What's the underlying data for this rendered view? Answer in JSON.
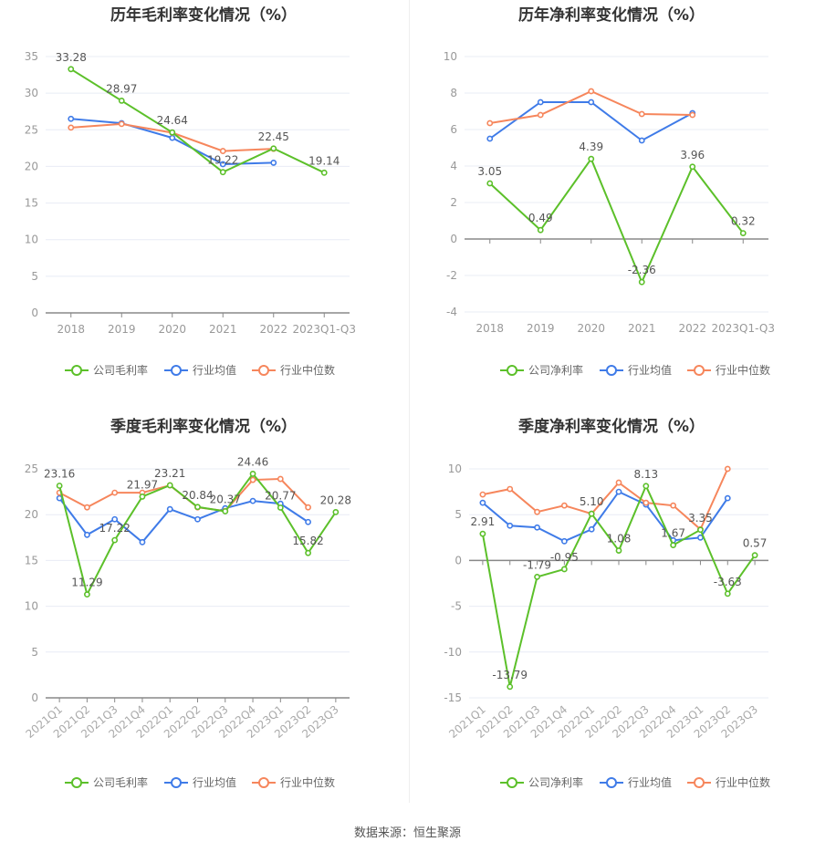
{
  "colors": {
    "company": "#5cc02a",
    "avg": "#3f7be8",
    "median": "#f6865c"
  },
  "footer": "数据来源：恒生聚源",
  "chart_data": [
    {
      "type": "line",
      "title": "历年毛利率变化情况（%）",
      "categories": [
        "2018",
        "2019",
        "2020",
        "2021",
        "2022",
        "2023Q1-Q3"
      ],
      "ylim": [
        0,
        35
      ],
      "yticks": [
        0,
        5,
        10,
        15,
        20,
        25,
        30,
        35
      ],
      "legend_position": "bottom",
      "series": [
        {
          "key": "company",
          "name": "公司毛利率",
          "values": [
            33.28,
            28.97,
            24.64,
            19.22,
            22.45,
            19.14
          ],
          "labels": [
            "33.28",
            "28.97",
            "24.64",
            "19.22",
            "22.45",
            "19.14"
          ]
        },
        {
          "key": "avg",
          "name": "行业均值",
          "values": [
            26.5,
            25.9,
            23.9,
            20.3,
            20.5,
            null
          ]
        },
        {
          "key": "median",
          "name": "行业中位数",
          "values": [
            25.3,
            25.8,
            24.6,
            22.1,
            22.4,
            null
          ]
        }
      ]
    },
    {
      "type": "line",
      "title": "历年净利率变化情况（%）",
      "categories": [
        "2018",
        "2019",
        "2020",
        "2021",
        "2022",
        "2023Q1-Q3"
      ],
      "ylim": [
        -4,
        10
      ],
      "yticks": [
        -4,
        -2,
        0,
        2,
        4,
        6,
        8,
        10
      ],
      "legend_position": "bottom",
      "series": [
        {
          "key": "company",
          "name": "公司净利率",
          "values": [
            3.05,
            0.49,
            4.39,
            -2.36,
            3.96,
            0.32
          ],
          "labels": [
            "3.05",
            "0.49",
            "4.39",
            "-2.36",
            "3.96",
            "0.32"
          ]
        },
        {
          "key": "avg",
          "name": "行业均值",
          "values": [
            5.5,
            7.5,
            7.5,
            5.4,
            6.9,
            null
          ]
        },
        {
          "key": "median",
          "name": "行业中位数",
          "values": [
            6.35,
            6.8,
            8.1,
            6.85,
            6.8,
            null
          ]
        }
      ]
    },
    {
      "type": "line",
      "title": "季度毛利率变化情况（%）",
      "categories": [
        "2021Q1",
        "2021Q2",
        "2021Q3",
        "2021Q4",
        "2022Q1",
        "2022Q2",
        "2022Q3",
        "2022Q4",
        "2023Q1",
        "2023Q2",
        "2023Q3"
      ],
      "ylim": [
        0,
        25
      ],
      "yticks": [
        0,
        5,
        10,
        15,
        20,
        25
      ],
      "legend_position": "bottom",
      "series": [
        {
          "key": "company",
          "name": "公司毛利率",
          "values": [
            23.16,
            11.29,
            17.22,
            21.97,
            23.21,
            20.84,
            20.37,
            24.46,
            20.77,
            15.82,
            20.28
          ],
          "labels": [
            "23.16",
            "11.29",
            "17.22",
            "21.97",
            "23.21",
            "20.84",
            "20.37",
            "24.46",
            "20.77",
            "15.82",
            "20.28"
          ]
        },
        {
          "key": "avg",
          "name": "行业均值",
          "values": [
            21.8,
            17.8,
            19.5,
            17.0,
            20.6,
            19.5,
            20.7,
            21.5,
            21.2,
            19.2,
            null
          ]
        },
        {
          "key": "median",
          "name": "行业中位数",
          "values": [
            22.4,
            20.8,
            22.4,
            22.4,
            23.2,
            20.8,
            20.4,
            23.8,
            23.9,
            20.8,
            null
          ]
        }
      ]
    },
    {
      "type": "line",
      "title": "季度净利率变化情况（%）",
      "categories": [
        "2021Q1",
        "2021Q2",
        "2021Q3",
        "2021Q4",
        "2022Q1",
        "2022Q2",
        "2022Q3",
        "2022Q4",
        "2023Q1",
        "2023Q2",
        "2023Q3"
      ],
      "ylim": [
        -15,
        10
      ],
      "yticks": [
        -15,
        -10,
        -5,
        0,
        5,
        10
      ],
      "legend_position": "bottom",
      "series": [
        {
          "key": "company",
          "name": "公司净利率",
          "values": [
            2.91,
            -13.79,
            -1.79,
            -0.95,
            5.1,
            1.08,
            8.13,
            1.67,
            3.35,
            -3.63,
            0.57
          ],
          "labels": [
            "2.91",
            "-13.79",
            "-1.79",
            "-0.95",
            "5.10",
            "1.08",
            "8.13",
            "1.67",
            "3.35",
            "-3.63",
            "0.57"
          ]
        },
        {
          "key": "avg",
          "name": "行业均值",
          "values": [
            6.3,
            3.8,
            3.6,
            2.1,
            3.4,
            7.5,
            6.1,
            2.2,
            2.5,
            6.8,
            null
          ]
        },
        {
          "key": "median",
          "name": "行业中位数",
          "values": [
            7.2,
            7.8,
            5.3,
            6.0,
            5.1,
            8.5,
            6.3,
            6.0,
            3.4,
            10.0,
            null
          ]
        }
      ]
    }
  ]
}
